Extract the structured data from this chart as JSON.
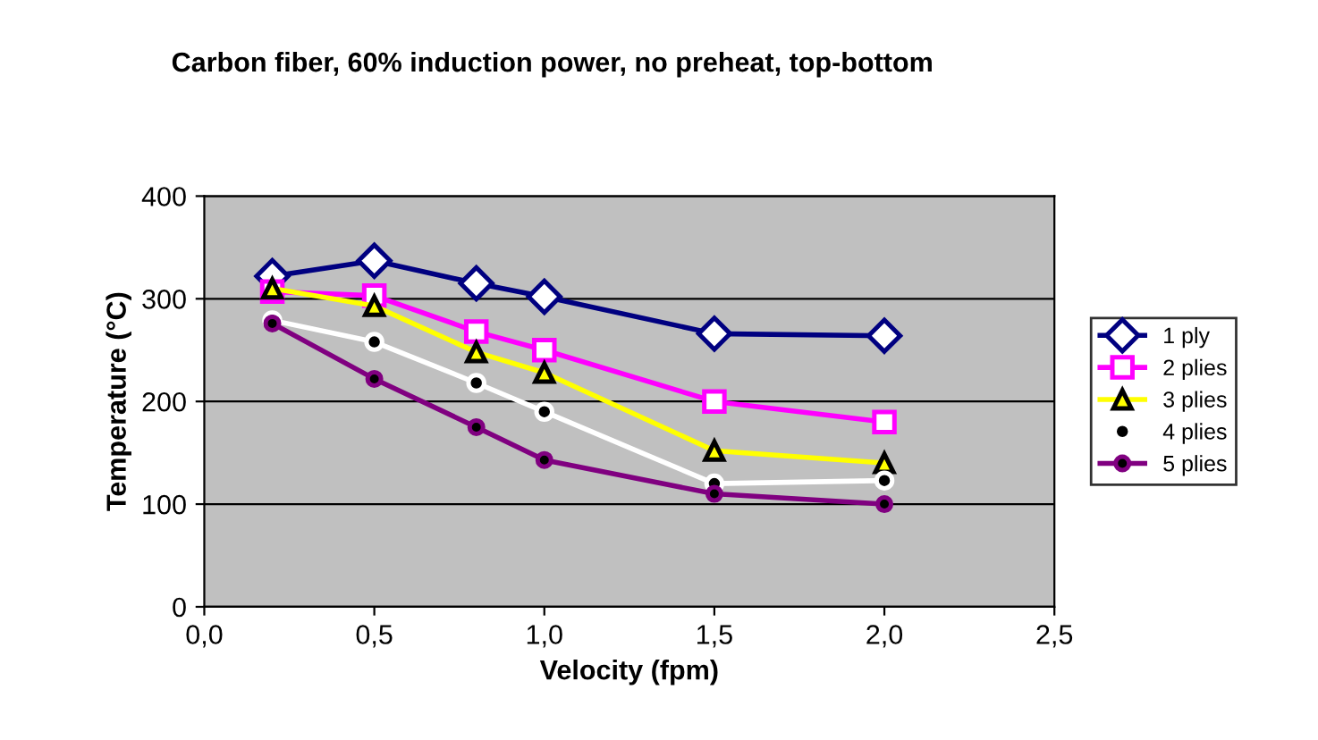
{
  "chart_data": {
    "type": "line",
    "title": "Carbon fiber, 60% induction power, no preheat, top-bottom",
    "xlabel": "Velocity (fpm)",
    "ylabel": "Temperature (°C)",
    "x": [
      0.2,
      0.5,
      0.8,
      1.0,
      1.5,
      2.0
    ],
    "series": [
      {
        "name": "1 ply",
        "color": "#000080",
        "marker": "diamond",
        "values": [
          322,
          337,
          315,
          302,
          266,
          264
        ]
      },
      {
        "name": "2 plies",
        "color": "#ff00ff",
        "marker": "square",
        "values": [
          307,
          303,
          268,
          250,
          200,
          180
        ]
      },
      {
        "name": "3 plies",
        "color": "#ffff00",
        "marker": "triangle",
        "values": [
          310,
          293,
          248,
          228,
          152,
          140
        ]
      },
      {
        "name": "4 plies",
        "color": "#ffffff",
        "marker": "circle",
        "values": [
          279,
          258,
          218,
          190,
          120,
          123
        ]
      },
      {
        "name": "5 plies",
        "color": "#800080",
        "marker": "circle",
        "values": [
          276,
          222,
          175,
          143,
          110,
          100
        ]
      }
    ],
    "xlim": [
      0,
      2.5
    ],
    "ylim": [
      0,
      400
    ],
    "xticks": [
      {
        "value": 0,
        "label": "0,0"
      },
      {
        "value": 0.5,
        "label": "0,5"
      },
      {
        "value": 1.0,
        "label": "1,0"
      },
      {
        "value": 1.5,
        "label": "1,5"
      },
      {
        "value": 2.0,
        "label": "2,0"
      },
      {
        "value": 2.5,
        "label": "2,5"
      }
    ],
    "yticks": [
      0,
      100,
      200,
      300,
      400
    ],
    "grid": "y",
    "legend": "right",
    "line_style": "solid"
  }
}
